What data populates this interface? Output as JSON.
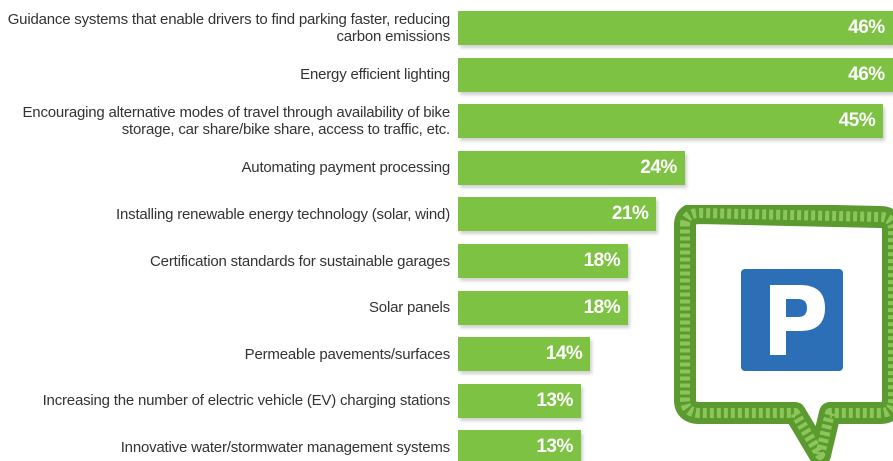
{
  "chart_data": {
    "type": "bar",
    "orientation": "horizontal",
    "categories": [
      "Guidance systems that enable drivers to find parking faster, reducing carbon emissions",
      "Energy efficient lighting",
      "Encouraging alternative modes of travel through availability of bike storage, car share/bike share, access to traffic, etc.",
      "Automating payment processing",
      "Installing renewable energy technology (solar, wind)",
      "Certification standards for sustainable garages",
      "Solar panels",
      "Permeable pavements/surfaces",
      "Increasing the number of electric vehicle (EV) charging stations",
      "Innovative water/stormwater management systems"
    ],
    "values": [
      46,
      46,
      45,
      24,
      21,
      18,
      18,
      14,
      13,
      13
    ],
    "value_labels": [
      "46%",
      "46%",
      "45%",
      "24%",
      "21%",
      "18%",
      "18%",
      "14%",
      "13%",
      "13%"
    ],
    "color": "#7dc242"
  }
}
